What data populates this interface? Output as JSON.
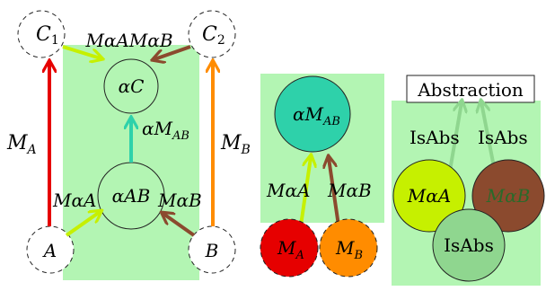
{
  "panel1": {
    "corner_tl": "C",
    "corner_tl_sub": "1",
    "corner_tr": "C",
    "corner_tr_sub": "2",
    "corner_bl": "A",
    "corner_br": "B",
    "top_label": "MαAMαB",
    "node_top": "αC",
    "node_bottom": "αAB",
    "left_arrow_label": "M",
    "left_arrow_sub": "A",
    "right_arrow_label": "M",
    "right_arrow_sub": "B",
    "center_arrow_label": "αM",
    "center_arrow_sub": "AB",
    "bottom_left_label": "MαA",
    "bottom_right_label": "MαB"
  },
  "panel2": {
    "node_top": "αM",
    "node_top_sub": "AB",
    "left_label": "MαA",
    "right_label": "MαB",
    "node_left": "M",
    "node_left_sub": "A",
    "node_right": "M",
    "node_right_sub": "B"
  },
  "panel3": {
    "title": "Abstraction",
    "label_left": "IsAbs",
    "label_right": "IsAbs",
    "node_left": "MαA",
    "node_right": "MαB",
    "node_bottom": "IsAbs"
  },
  "colors": {
    "panel_fill": "#b3f5b3",
    "red": "#e60000",
    "orange": "#ff8c00",
    "teal": "#2ed1aa",
    "lime": "#c6f000",
    "brown": "#8b4a2e",
    "pale_green": "#8fd68f"
  }
}
